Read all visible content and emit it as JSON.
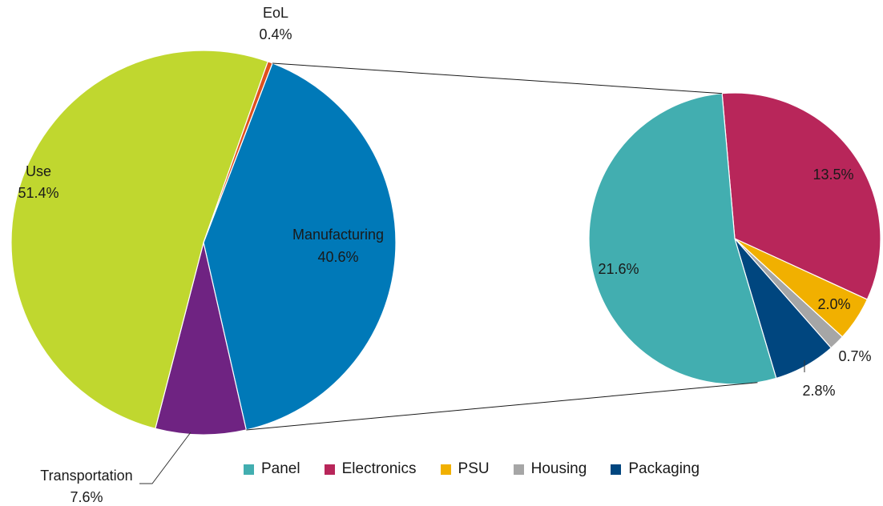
{
  "chart_data": {
    "type": "pie",
    "main_pie": {
      "slices": [
        {
          "label": "Manufacturing",
          "value": 40.6,
          "value_label": "40.6%",
          "color": "#0079B8"
        },
        {
          "label": "Transportation",
          "value": 7.6,
          "value_label": "7.6%",
          "color": "#6F2382"
        },
        {
          "label": "Use",
          "value": 51.4,
          "value_label": "51.4%",
          "color": "#C0D72F"
        },
        {
          "label": "EoL",
          "value": 0.4,
          "value_label": "0.4%",
          "color": "#E0501E"
        }
      ]
    },
    "breakdown_pie": {
      "of": "Manufacturing",
      "slices": [
        {
          "label": "Electronics",
          "value": 13.5,
          "value_label": "13.5%",
          "color": "#B8265A"
        },
        {
          "label": "PSU",
          "value": 2.0,
          "value_label": "2.0%",
          "color": "#F1B000"
        },
        {
          "label": "Housing",
          "value": 0.7,
          "value_label": "0.7%",
          "color": "#A6A6A6"
        },
        {
          "label": "Packaging",
          "value": 2.8,
          "value_label": "2.8%",
          "color": "#00467F"
        },
        {
          "label": "Panel",
          "value": 21.6,
          "value_label": "21.6%",
          "color": "#42AEB0"
        }
      ]
    },
    "legend": {
      "placement": "bottom",
      "items": [
        {
          "label": "Panel",
          "color": "#42AEB0"
        },
        {
          "label": "Electronics",
          "color": "#B8265A"
        },
        {
          "label": "PSU",
          "color": "#F1B000"
        },
        {
          "label": "Housing",
          "color": "#A6A6A6"
        },
        {
          "label": "Packaging",
          "color": "#00467F"
        }
      ]
    }
  }
}
